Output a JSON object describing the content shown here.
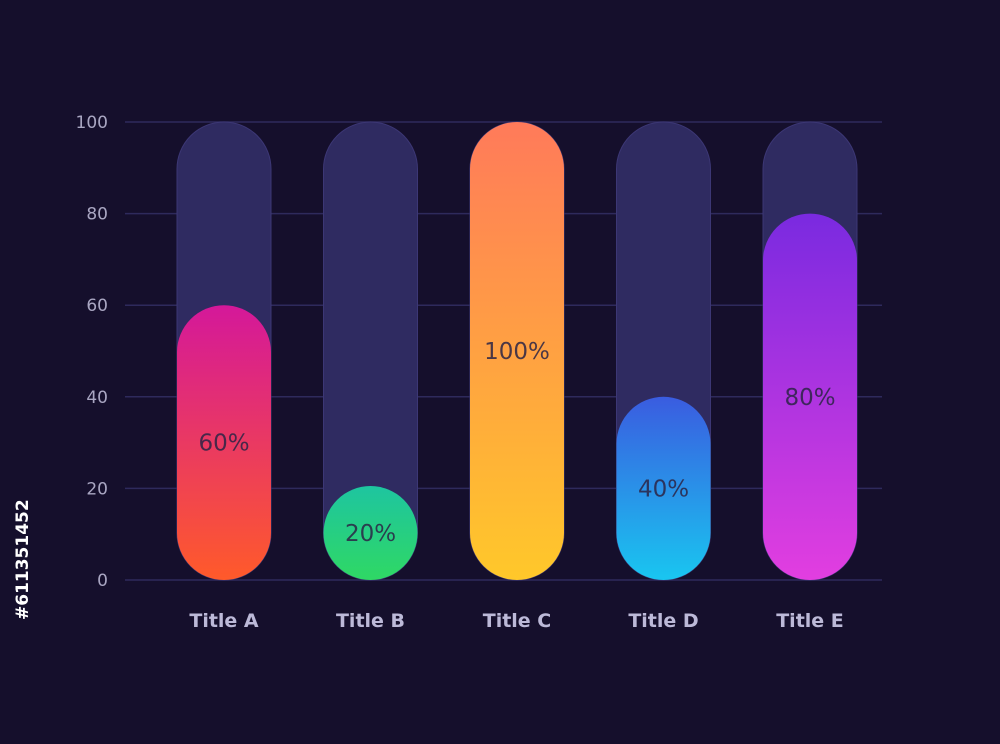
{
  "chart_data": {
    "type": "bar",
    "categories": [
      "Title A",
      "Title B",
      "Title C",
      "Title D",
      "Title E"
    ],
    "values": [
      60,
      20,
      100,
      40,
      80
    ],
    "value_labels": [
      "60%",
      "20%",
      "100%",
      "40%",
      "80%"
    ],
    "ylim": [
      0,
      100
    ],
    "yticks": [
      0,
      20,
      40,
      60,
      80,
      100
    ],
    "grid": true,
    "background_color": "#150f2c",
    "track_color": "#2f2b61",
    "grid_color": "#2e2a5c",
    "bar_gradients": [
      [
        "#d4189a",
        "#ff5a2a"
      ],
      [
        "#1ec5a0",
        "#2fd864"
      ],
      [
        "#ff7a5a",
        "#ffc82a"
      ],
      [
        "#3a5ce0",
        "#19c6f0"
      ],
      [
        "#7a2ae0",
        "#e23ee0"
      ]
    ]
  },
  "stock_id": "#611351452"
}
